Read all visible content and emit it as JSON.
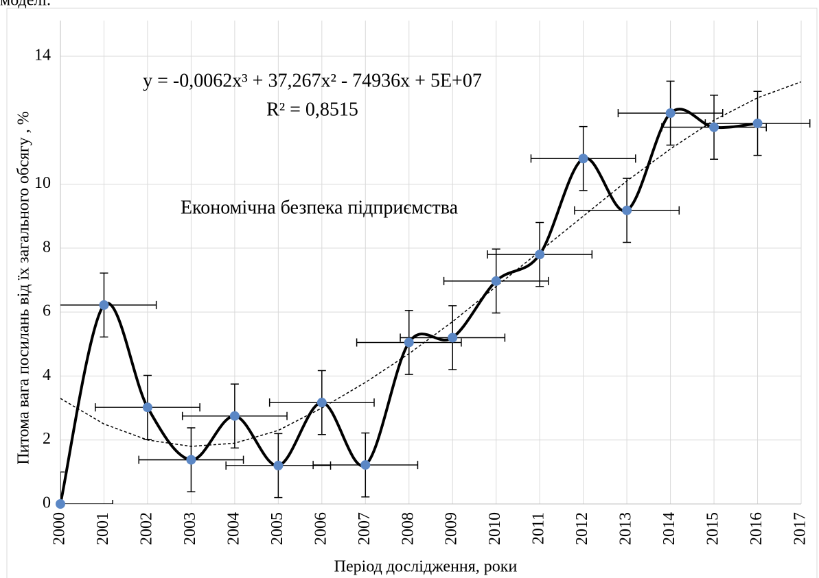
{
  "header_text": "моделі.",
  "chart_data": {
    "type": "scatter",
    "annotation": "Економічна безпека підприємства",
    "equation": "y = -0,0062x³ + 37,267x² - 74936x + 5E+07",
    "r_squared": "R² = 0,8515",
    "x_label": "Період дослідження, роки",
    "y_label": "Питома вага посилань від їх загального обсягу , %",
    "x": [
      2000,
      2001,
      2002,
      2003,
      2004,
      2005,
      2006,
      2007,
      2008,
      2009,
      2010,
      2011,
      2012,
      2013,
      2014,
      2015,
      2016
    ],
    "values": [
      0,
      6.22,
      3.02,
      1.38,
      2.75,
      1.2,
      3.17,
      1.22,
      5.05,
      5.2,
      6.97,
      7.8,
      10.8,
      9.18,
      12.22,
      11.78,
      11.9
    ],
    "yerr": 1,
    "xerr": 1.2,
    "color": "#5b87c5",
    "line_color": "#000000",
    "trendline": {
      "x": [
        2000,
        2001,
        2002,
        2003,
        2004,
        2005,
        2006,
        2007,
        2008,
        2009,
        2010,
        2011,
        2012,
        2013,
        2014,
        2015,
        2016,
        2017
      ],
      "values": [
        3.3,
        2.5,
        2.0,
        1.8,
        1.9,
        2.3,
        3.0,
        3.8,
        4.7,
        5.7,
        6.8,
        7.9,
        9.0,
        10.1,
        11.1,
        12.0,
        12.7,
        13.2
      ]
    },
    "xlim": [
      2000,
      2017
    ],
    "ylim": [
      0,
      14
    ],
    "xticks": [
      2000,
      2001,
      2002,
      2003,
      2004,
      2005,
      2006,
      2007,
      2008,
      2009,
      2010,
      2011,
      2012,
      2013,
      2014,
      2015,
      2016,
      2017
    ],
    "yticks": [
      0,
      2,
      4,
      6,
      8,
      10,
      14
    ],
    "grid": true
  }
}
